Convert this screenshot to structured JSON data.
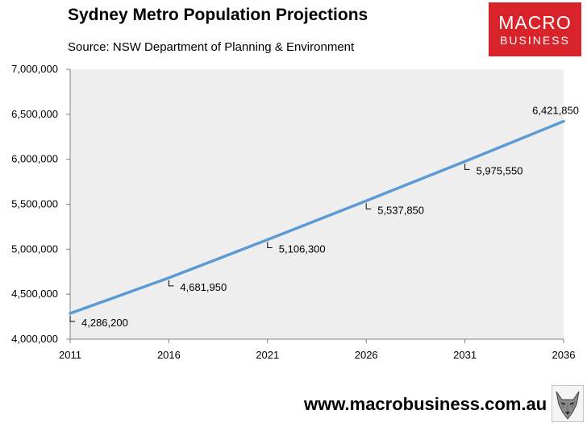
{
  "chart_data": {
    "type": "line",
    "title": "Sydney Metro Population Projections",
    "subtitle": "Source: NSW Department of Planning & Environment",
    "x": [
      2011,
      2016,
      2021,
      2026,
      2031,
      2036
    ],
    "series": [
      {
        "values": [
          4286200,
          4681950,
          5106300,
          5537850,
          5975550,
          6421850
        ],
        "labels": [
          "4,286,200",
          "4,681,950",
          "5,106,300",
          "5,537,850",
          "5,975,550",
          "6,421,850"
        ],
        "color": "#5b9bd5"
      }
    ],
    "xlim": [
      2011,
      2036
    ],
    "ylim": [
      4000000,
      7000000
    ],
    "x_tick_labels": [
      "2011",
      "2016",
      "2021",
      "2026",
      "2031",
      "2036"
    ],
    "y_tick_labels": [
      "4,000,000",
      "4,500,000",
      "5,000,000",
      "5,500,000",
      "6,000,000",
      "6,500,000",
      "7,000,000"
    ],
    "grid": false,
    "plot_background": "#eeeeee"
  },
  "branding": {
    "logo_line1": "MACRO",
    "logo_line2": "BUSINESS",
    "logo_color": "#d8232a",
    "website": "www.macrobusiness.com.au"
  }
}
